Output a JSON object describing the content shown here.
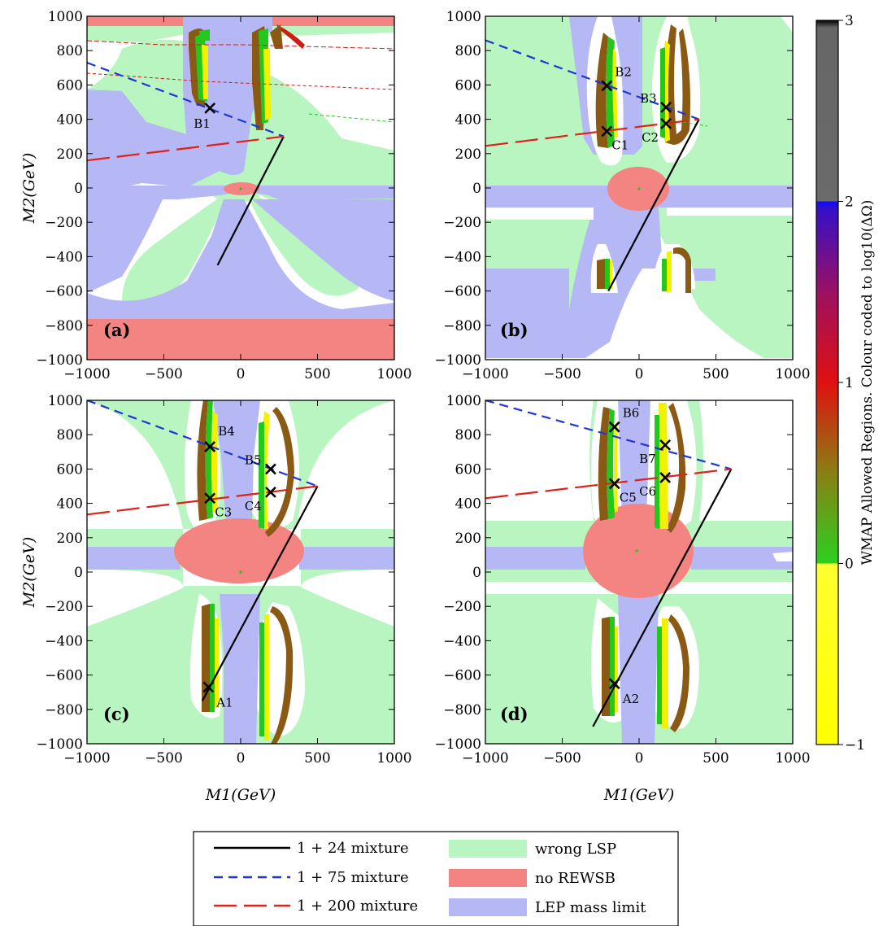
{
  "chart_data": [
    {
      "type": "scatter",
      "panel_label": "(a)",
      "xlim": [
        -1000,
        1000
      ],
      "ylim": [
        -1000,
        1000
      ],
      "xticks": [
        -1000,
        -500,
        0,
        500,
        1000
      ],
      "yticks": [
        1000,
        800,
        600,
        400,
        200,
        0,
        -200,
        -400,
        -600,
        -800,
        -1000
      ],
      "xlabel": "",
      "ylabel": "M2(GeV)",
      "lines": [
        {
          "style": "solid-black",
          "points": [
            [
              -150,
              -450
            ],
            [
              280,
              300
            ]
          ]
        },
        {
          "style": "dashed-blue",
          "points": [
            [
              -1000,
              730
            ],
            [
              280,
              300
            ]
          ]
        },
        {
          "style": "longdash-red",
          "points": [
            [
              -1000,
              160
            ],
            [
              280,
              300
            ]
          ]
        }
      ],
      "points": [
        {
          "label": "B1",
          "x": -200,
          "y": 465
        }
      ]
    },
    {
      "type": "scatter",
      "panel_label": "(b)",
      "xlim": [
        -1000,
        1000
      ],
      "ylim": [
        -1000,
        1000
      ],
      "xticks": [
        -1000,
        -500,
        0,
        500,
        1000
      ],
      "yticks": [
        1000,
        800,
        600,
        400,
        200,
        0,
        -200,
        -400,
        -600,
        -800,
        -1000
      ],
      "xlabel": "",
      "ylabel": "",
      "lines": [
        {
          "style": "solid-black",
          "points": [
            [
              -200,
              -600
            ],
            [
              390,
              400
            ]
          ]
        },
        {
          "style": "dashed-blue",
          "points": [
            [
              -1000,
              860
            ],
            [
              390,
              400
            ]
          ]
        },
        {
          "style": "longdash-red",
          "points": [
            [
              -1000,
              245
            ],
            [
              390,
              400
            ]
          ]
        }
      ],
      "points": [
        {
          "label": "B2",
          "x": -210,
          "y": 595
        },
        {
          "label": "B3",
          "x": 175,
          "y": 470
        },
        {
          "label": "C1",
          "x": -210,
          "y": 330
        },
        {
          "label": "C2",
          "x": 175,
          "y": 375
        }
      ]
    },
    {
      "type": "scatter",
      "panel_label": "(c)",
      "xlim": [
        -1000,
        1000
      ],
      "ylim": [
        -1000,
        1000
      ],
      "xticks": [
        -1000,
        -500,
        0,
        500,
        1000
      ],
      "yticks": [
        1000,
        800,
        600,
        400,
        200,
        0,
        -200,
        -400,
        -600,
        -800,
        -1000
      ],
      "xlabel": "M1(GeV)",
      "ylabel": "M2(GeV)",
      "lines": [
        {
          "style": "solid-black",
          "points": [
            [
              -250,
              -750
            ],
            [
              500,
              500
            ]
          ]
        },
        {
          "style": "dashed-blue",
          "points": [
            [
              -1000,
              1000
            ],
            [
              500,
              500
            ]
          ]
        },
        {
          "style": "longdash-red",
          "points": [
            [
              -1000,
              335
            ],
            [
              500,
              500
            ]
          ]
        }
      ],
      "points": [
        {
          "label": "B4",
          "x": -200,
          "y": 730
        },
        {
          "label": "B5",
          "x": 195,
          "y": 600
        },
        {
          "label": "C3",
          "x": -200,
          "y": 430
        },
        {
          "label": "C4",
          "x": 195,
          "y": 465
        },
        {
          "label": "A1",
          "x": -210,
          "y": -670
        }
      ]
    },
    {
      "type": "scatter",
      "panel_label": "(d)",
      "xlim": [
        -1000,
        1000
      ],
      "ylim": [
        -1000,
        1000
      ],
      "xticks": [
        -1000,
        -500,
        0,
        500,
        1000
      ],
      "yticks": [
        1000,
        800,
        600,
        400,
        200,
        0,
        -200,
        -400,
        -600,
        -800,
        -1000
      ],
      "xlabel": "M1(GeV)",
      "ylabel": "",
      "lines": [
        {
          "style": "solid-black",
          "points": [
            [
              -300,
              -900
            ],
            [
              600,
              600
            ]
          ]
        },
        {
          "style": "dashed-blue",
          "points": [
            [
              -1000,
              1000
            ],
            [
              600,
              600
            ]
          ]
        },
        {
          "style": "longdash-red",
          "points": [
            [
              -1000,
              430
            ],
            [
              600,
              600
            ]
          ]
        }
      ],
      "points": [
        {
          "label": "B6",
          "x": -160,
          "y": 845
        },
        {
          "label": "B7",
          "x": 170,
          "y": 740
        },
        {
          "label": "C5",
          "x": -160,
          "y": 515
        },
        {
          "label": "C6",
          "x": 170,
          "y": 550
        },
        {
          "label": "A2",
          "x": -160,
          "y": -650
        }
      ]
    }
  ],
  "colorbar": {
    "label": "WMAP Allowed Regions. Colour coded to log10(ΔΩ)",
    "ticks": [
      "3",
      "2",
      "1",
      "0",
      "−1"
    ],
    "tick_values": [
      3,
      2,
      1,
      0,
      -1
    ],
    "range": [
      -1,
      3
    ]
  },
  "legend": {
    "lines": [
      {
        "label": "1 + 24 mixture",
        "color": "#000000",
        "style": "solid"
      },
      {
        "label": "1 + 75 mixture",
        "color": "#1f35d6",
        "style": "dashed"
      },
      {
        "label": "1 + 200 mixture",
        "color": "#e0201a",
        "style": "longdash"
      }
    ],
    "regions": [
      {
        "label": "wrong LSP",
        "color": "#b9f5c0"
      },
      {
        "label": "no REWSB",
        "color": "#f48481"
      },
      {
        "label": "LEP mass limit",
        "color": "#b5b8f4"
      }
    ]
  },
  "colors": {
    "wrong_lsp": "#b9f5c0",
    "no_rewsb": "#f48481",
    "lep_limit": "#b5b8f4",
    "band_yellow": "#f2f200",
    "band_green": "#23c81c",
    "band_brown": "#8a5a14",
    "band_red": "#d11b13"
  }
}
